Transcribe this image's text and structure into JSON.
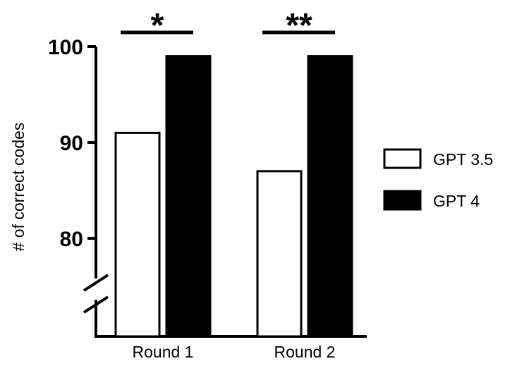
{
  "chart_data": {
    "type": "bar",
    "categories": [
      "Round 1",
      "Round 2"
    ],
    "series": [
      {
        "name": "GPT 3.5",
        "values": [
          91,
          87
        ],
        "fill": "#ffffff",
        "stroke": "#000000"
      },
      {
        "name": "GPT 4",
        "values": [
          99,
          99
        ],
        "fill": "#000000",
        "stroke": "#000000"
      }
    ],
    "ylabel": "# of correct codes",
    "xlabel": "",
    "yticks": [
      80,
      90,
      100
    ],
    "ylim": [
      70,
      100
    ],
    "axis_break": true,
    "significance": [
      {
        "category": "Round 1",
        "label": "*"
      },
      {
        "category": "Round 2",
        "label": "**"
      }
    ],
    "legend_position": "right",
    "grid": false
  }
}
